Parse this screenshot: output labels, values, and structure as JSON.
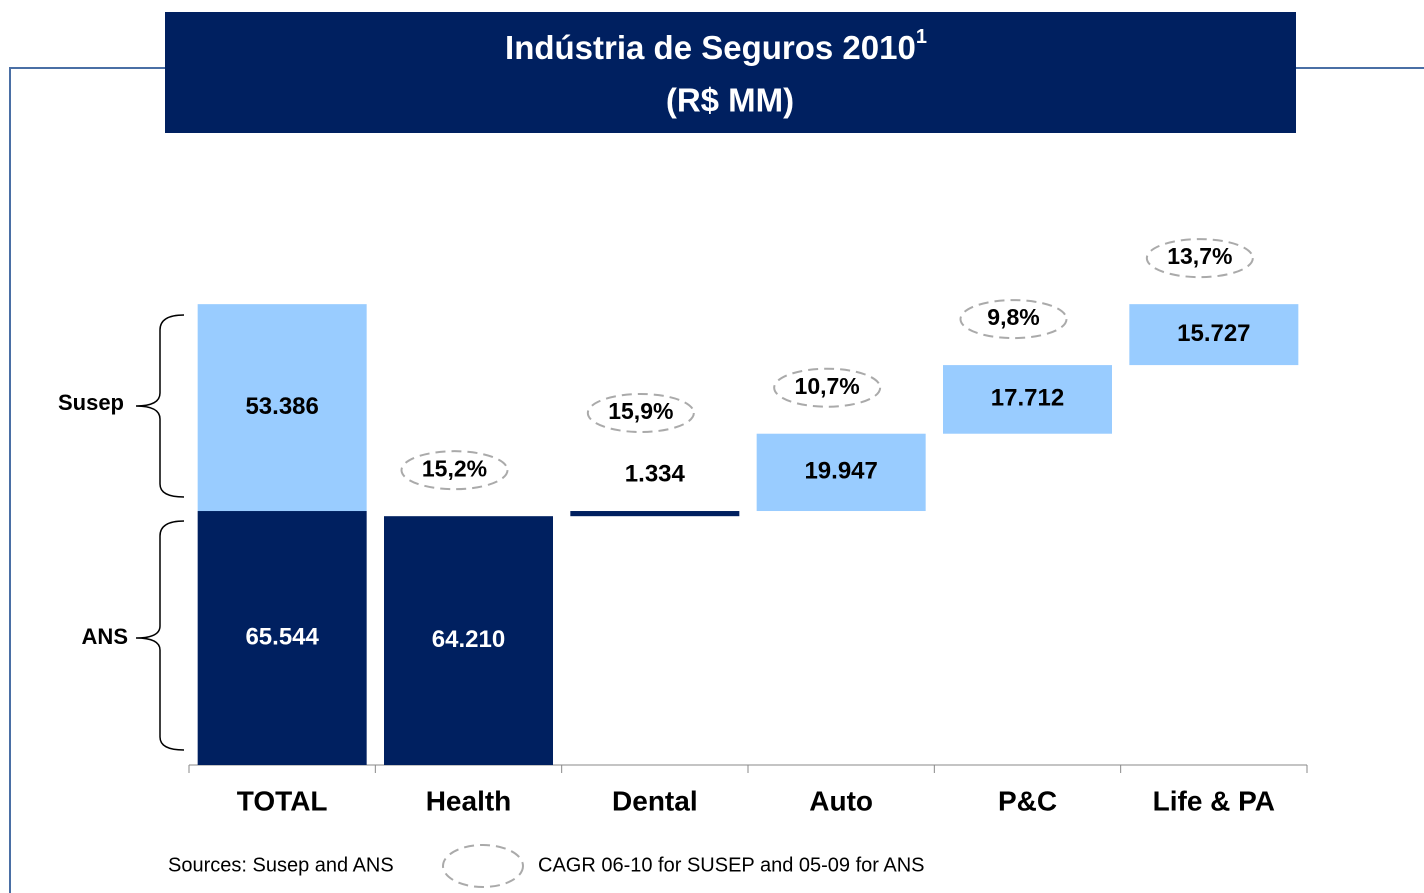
{
  "chart_data": {
    "type": "waterfall",
    "title": "Indústria de Seguros 2010",
    "title_superscript": "1",
    "subtitle": "(R$ MM)",
    "categories": [
      "TOTAL",
      "Health",
      "Dental",
      "Auto",
      "P&C",
      "Life & PA"
    ],
    "series": [
      {
        "name": "ANS",
        "color": "#002060",
        "values": [
          65544,
          64210,
          1334,
          null,
          null,
          null
        ],
        "value_labels": [
          "65.544",
          "64.210",
          "1.334",
          null,
          null,
          null
        ]
      },
      {
        "name": "Susep",
        "color": "#99ccff",
        "values": [
          53386,
          null,
          null,
          19947,
          17712,
          15727
        ],
        "value_labels": [
          "53.386",
          null,
          null,
          "19.947",
          "17.712",
          "15.727"
        ]
      }
    ],
    "cagr": {
      "values": [
        null,
        15.2,
        15.9,
        10.7,
        9.8,
        13.7
      ],
      "value_labels": [
        null,
        "15,2%",
        "15,9%",
        "10,7%",
        "9,8%",
        "13,7%"
      ]
    },
    "footer": {
      "sources": "Sources: Susep and ANS",
      "cagr_note": "CAGR 06-10 for SUSEP and 05-09 for ANS"
    }
  }
}
